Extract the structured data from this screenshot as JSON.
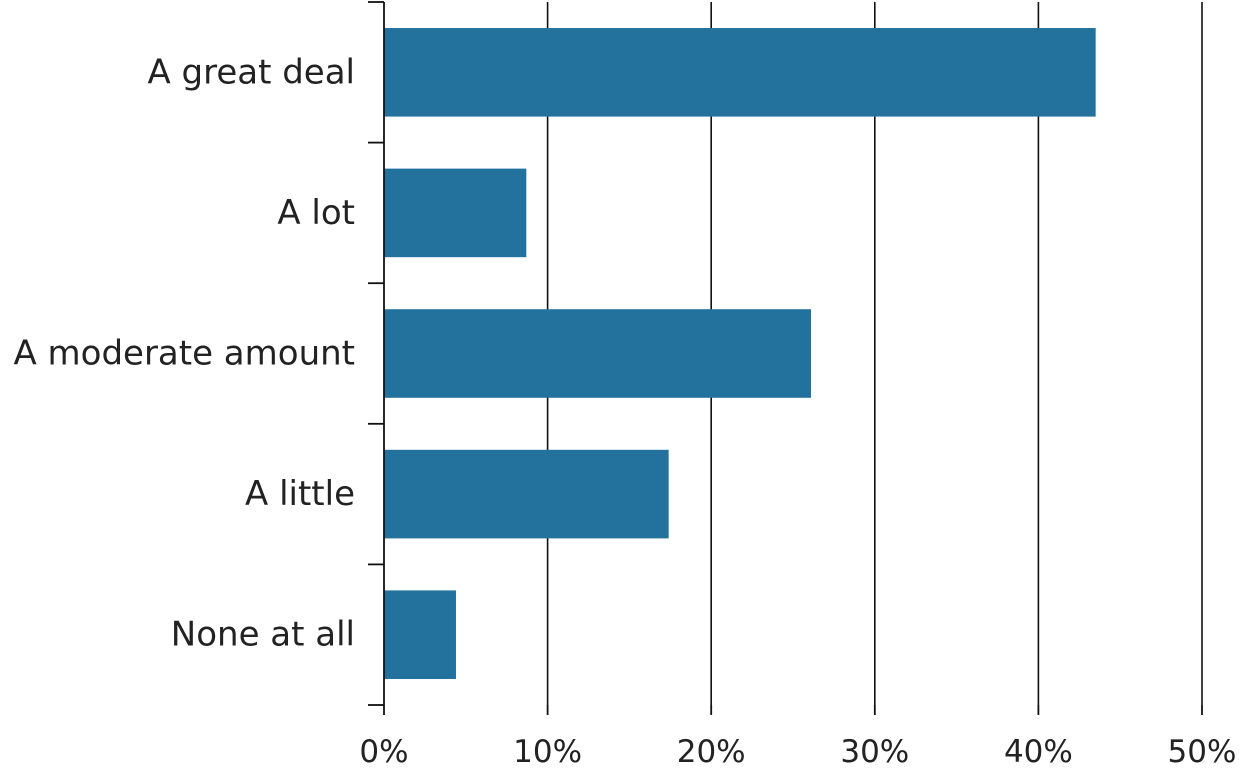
{
  "chart_data": {
    "type": "bar",
    "orientation": "horizontal",
    "categories": [
      "A great deal",
      "A lot",
      "A moderate amount",
      "A little",
      "None at all"
    ],
    "values": [
      43.5,
      8.7,
      26.1,
      17.4,
      4.4
    ],
    "xlim": [
      0,
      50
    ],
    "xticks": [
      0,
      10,
      20,
      30,
      40,
      50
    ],
    "xtick_labels": [
      "0%",
      "10%",
      "20%",
      "30%",
      "40%",
      "50%"
    ],
    "title": "",
    "xlabel": "",
    "ylabel": "",
    "grid": "vertical",
    "legend": "none",
    "bar_color": "#23729e"
  }
}
